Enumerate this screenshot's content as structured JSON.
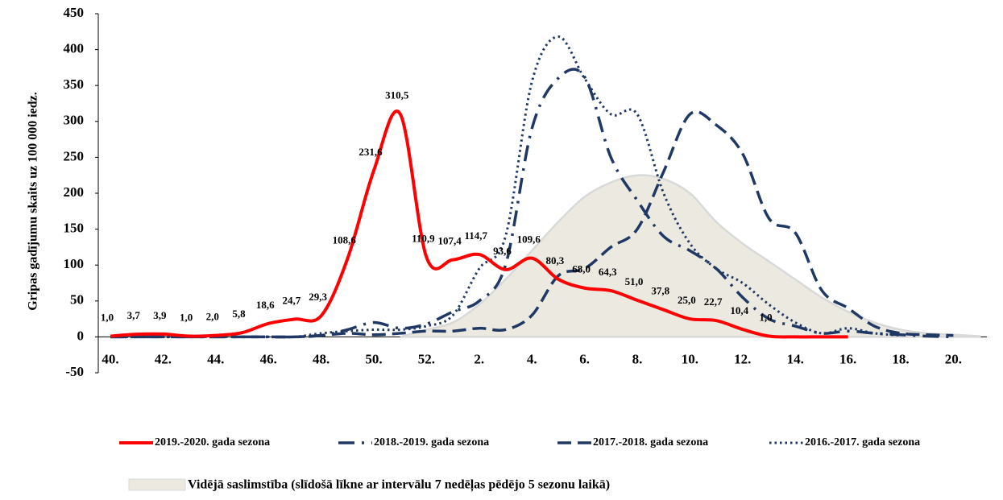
{
  "chart_data": {
    "type": "line",
    "y_label": "Gripas gadījumu skaits uz 100 000 iedz.",
    "categories": [
      "40.",
      null,
      "42.",
      null,
      "44.",
      null,
      "46.",
      null,
      "48.",
      null,
      "50.",
      null,
      "52.",
      null,
      "2.",
      null,
      "4.",
      null,
      "6.",
      null,
      "8.",
      null,
      "10.",
      null,
      "12.",
      null,
      "14.",
      null,
      "16.",
      null,
      "18.",
      null,
      "20.",
      null
    ],
    "ylim": [
      -50,
      450
    ],
    "yticks": [
      -50,
      0,
      50,
      100,
      150,
      200,
      250,
      300,
      350,
      400,
      450
    ],
    "series": [
      {
        "name": "2019.-2020. gada sezona",
        "color": "#ff0000",
        "style": "solid",
        "values": [
          1.0,
          3.7,
          3.9,
          1.0,
          2.0,
          5.8,
          18.6,
          24.7,
          29.3,
          108.6,
          231.6,
          310.5,
          110.9,
          107.4,
          114.7,
          93.6,
          109.6,
          80.3,
          68.0,
          64.3,
          51.0,
          37.8,
          25.0,
          22.7,
          10.4,
          1.0,
          0,
          0,
          0,
          null,
          null,
          null,
          null,
          null
        ],
        "value_labels": [
          "1,0",
          "3,7",
          "3,9",
          "1,0",
          "2,0",
          "5,8",
          "18,6",
          "24,7",
          "29,3",
          "108,6",
          "231,6",
          "310,5",
          "110,9",
          "107,4",
          "114,7",
          "93,6",
          "109,6",
          "80,3",
          "68,0",
          "64,3",
          "51,0",
          "37,8",
          "25,0",
          "22,7",
          "10,4",
          "1,0",
          null,
          null,
          null,
          null,
          null,
          null,
          null,
          null
        ]
      },
      {
        "name": "2018.-2019. gada sezona",
        "color": "#1f3864",
        "style": "dash-dot",
        "values": [
          0,
          0,
          0,
          0,
          0,
          0,
          0,
          0,
          2,
          10,
          20,
          12,
          18,
          35,
          50,
          100,
          290,
          360,
          362,
          250,
          190,
          140,
          120,
          95,
          55,
          25,
          15,
          5,
          8,
          5,
          3,
          1,
          0,
          null
        ]
      },
      {
        "name": "2017.-2018. gada sezona",
        "color": "#1f3864",
        "style": "dash",
        "values": [
          0,
          0,
          0,
          0,
          0,
          0,
          0,
          0,
          2,
          5,
          3,
          5,
          8,
          8,
          12,
          10,
          30,
          85,
          95,
          125,
          150,
          230,
          310,
          295,
          255,
          165,
          145,
          65,
          40,
          15,
          5,
          3,
          2,
          null
        ]
      },
      {
        "name": "2016.-2017. gada sezona",
        "color": "#1f3864",
        "style": "dot",
        "values": [
          0,
          0,
          0,
          0,
          0,
          0,
          0,
          0,
          5,
          8,
          10,
          10,
          15,
          30,
          95,
          140,
          355,
          418,
          360,
          310,
          310,
          200,
          130,
          95,
          75,
          45,
          20,
          5,
          12,
          5,
          2,
          null,
          null,
          null
        ]
      }
    ],
    "area": {
      "name": "Vidējā saslimstība (slīdošā līkne ar intervālu 7 nedēļas pēdējo 5 sezonu laikā)",
      "color": "#ece9e0",
      "values": [
        null,
        null,
        null,
        null,
        null,
        null,
        null,
        null,
        null,
        null,
        null,
        0,
        10,
        20,
        45,
        80,
        120,
        160,
        195,
        215,
        225,
        220,
        200,
        160,
        130,
        105,
        80,
        55,
        35,
        20,
        10,
        5,
        3,
        1
      ]
    }
  }
}
